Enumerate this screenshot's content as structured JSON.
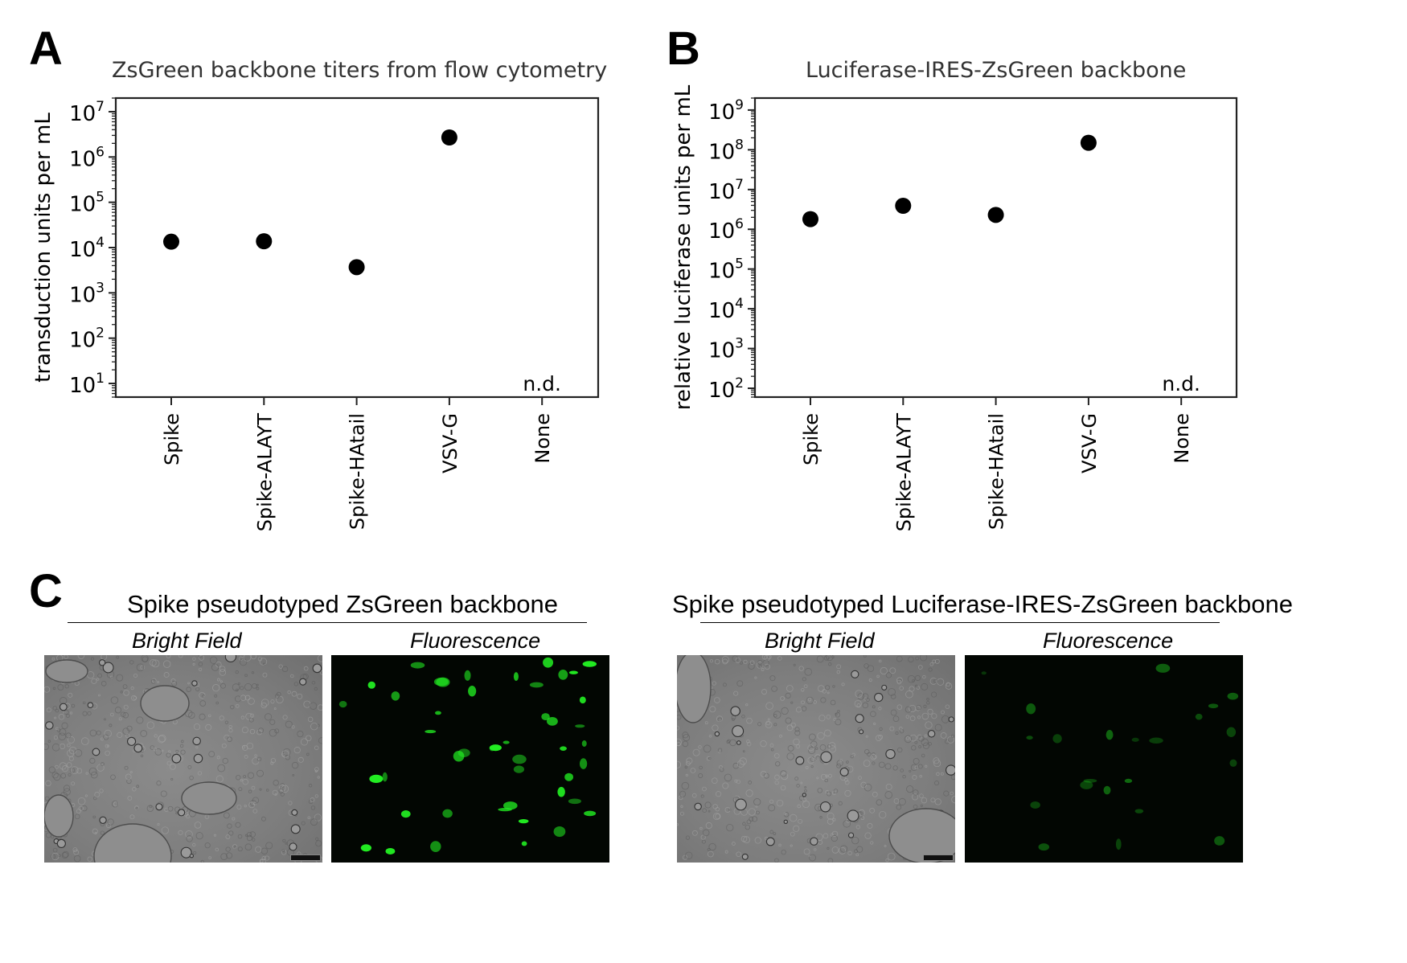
{
  "chart_data": [
    {
      "type": "scatter",
      "panel": "A",
      "title": "ZsGreen backbone titers from flow cytometry",
      "xlabel": "",
      "ylabel": "transduction units per mL",
      "yscale": "log",
      "ylim": [
        5,
        20000000
      ],
      "yticks": [
        10,
        100,
        1000,
        10000,
        100000,
        1000000,
        10000000
      ],
      "ytick_labels": [
        {
          "base": "10",
          "exp": "1"
        },
        {
          "base": "10",
          "exp": "2"
        },
        {
          "base": "10",
          "exp": "3"
        },
        {
          "base": "10",
          "exp": "4"
        },
        {
          "base": "10",
          "exp": "5"
        },
        {
          "base": "10",
          "exp": "6"
        },
        {
          "base": "10",
          "exp": "7"
        }
      ],
      "categories": [
        "Spike",
        "Spike-ALAYT",
        "Spike-HAtail",
        "VSV-G",
        "None"
      ],
      "values": [
        13500,
        13800,
        3700,
        2700000,
        null
      ],
      "annotations": [
        {
          "category": "None",
          "text": "n.d."
        }
      ],
      "grid": false,
      "marker_color": "#000000"
    },
    {
      "type": "scatter",
      "panel": "B",
      "title": "Luciferase-IRES-ZsGreen backbone",
      "xlabel": "",
      "ylabel": "relative luciferase units per mL",
      "yscale": "log",
      "ylim": [
        60,
        2000000000
      ],
      "yticks": [
        100,
        1000,
        10000,
        100000,
        1000000,
        10000000,
        100000000,
        1000000000
      ],
      "ytick_labels": [
        {
          "base": "10",
          "exp": "2"
        },
        {
          "base": "10",
          "exp": "3"
        },
        {
          "base": "10",
          "exp": "4"
        },
        {
          "base": "10",
          "exp": "5"
        },
        {
          "base": "10",
          "exp": "6"
        },
        {
          "base": "10",
          "exp": "7"
        },
        {
          "base": "10",
          "exp": "8"
        },
        {
          "base": "10",
          "exp": "9"
        }
      ],
      "categories": [
        "Spike",
        "Spike-ALAYT",
        "Spike-HAtail",
        "VSV-G",
        "None"
      ],
      "values": [
        1800000,
        3900000,
        2300000,
        150000000,
        null
      ],
      "annotations": [
        {
          "category": "None",
          "text": "n.d."
        }
      ],
      "grid": false,
      "marker_color": "#000000"
    }
  ],
  "panel_letters": {
    "a": "A",
    "b": "B",
    "c": "C"
  },
  "panel_c": {
    "left": {
      "title": "Spike pseudotyped ZsGreen backbone",
      "bright_label": "Bright Field",
      "fluor_label": "Fluorescence"
    },
    "right": {
      "title": "Spike pseudotyped Luciferase-IRES-ZsGreen backbone",
      "bright_label": "Bright Field",
      "fluor_label": "Fluorescence"
    },
    "fluorescence_color": "#22ee22"
  }
}
